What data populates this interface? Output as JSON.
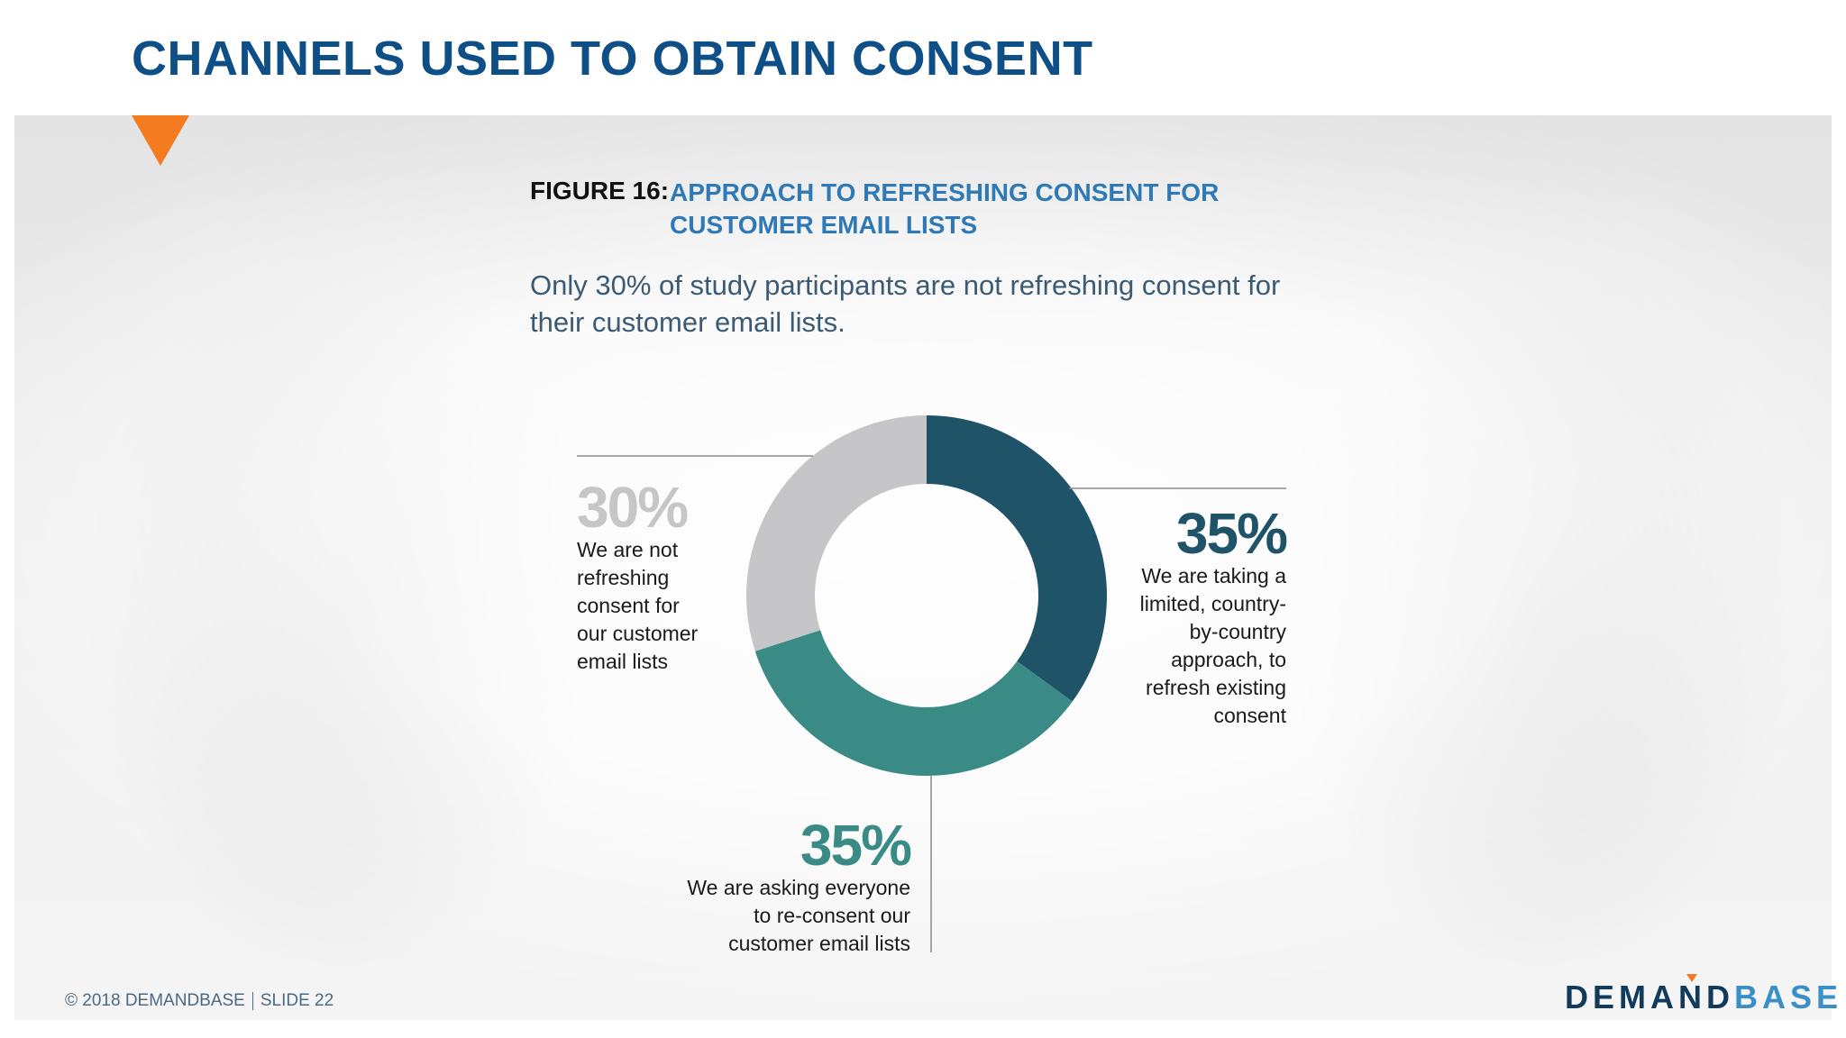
{
  "slide": {
    "title": "CHANNELS USED TO OBTAIN CONSENT",
    "footer_copyright": "© 2018 DEMANDBASE",
    "footer_slide": "SLIDE 22",
    "logo_part1": "DEMAND",
    "logo_part2": "BASE",
    "accent_color": "#f47b20"
  },
  "figure": {
    "number": "FIGURE 16:",
    "title_line1": "APPROACH TO REFRESHING CONSENT FOR",
    "title_line2": "CUSTOMER EMAIL LISTS",
    "subtitle": "Only 30% of study participants are not refreshing consent for their customer email lists."
  },
  "chart_data": {
    "type": "pie",
    "donut": true,
    "slices": [
      {
        "value": 35,
        "label": "35%",
        "desc_lines": [
          "We are taking a",
          "limited, country-",
          "by-country",
          "approach, to",
          "refresh existing",
          "consent"
        ],
        "color": "#1e5368"
      },
      {
        "value": 35,
        "label": "35%",
        "desc_lines": [
          "We are asking everyone",
          "to re-consent our",
          "customer email lists"
        ],
        "color": "#3a8a86"
      },
      {
        "value": 30,
        "label": "30%",
        "desc_lines": [
          "We are not",
          "refreshing",
          "consent for",
          "our customer",
          "email lists"
        ],
        "color": "#c6c6c9"
      }
    ]
  }
}
